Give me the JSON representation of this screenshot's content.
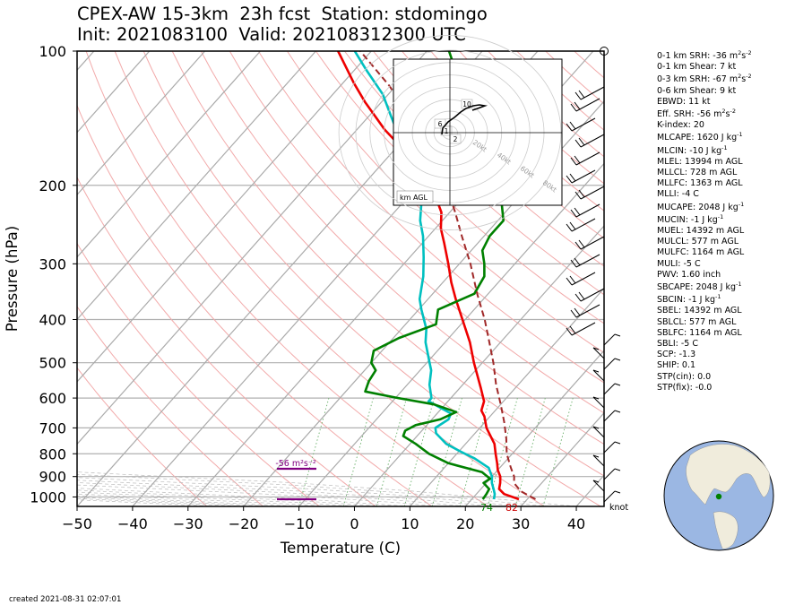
{
  "title_line1": "CPEX-AW 15-3km  23h fcst  Station: stdomingo",
  "title_line2": "Init: 2021083100  Valid: 202108312300 UTC",
  "created": "created 2021-08-31 02:07:01",
  "indices": [
    {
      "text": "0-1 km SRH: -36 m",
      "sup": "2",
      "tail": "s",
      "sup2": "-2"
    },
    {
      "text": "0-1 km Shear: 7 kt"
    },
    {
      "text": "0-3 km SRH: -67 m",
      "sup": "2",
      "tail": "s",
      "sup2": "-2",
      "gap": true
    },
    {
      "text": "0-6 km Shear: 9 kt"
    },
    {
      "text": "EBWD: 11 kt"
    },
    {
      "text": "Eff. SRH: -56 m",
      "sup": "2",
      "tail": "s",
      "sup2": "-2",
      "gap": true
    },
    {
      "text": "K-index: 20"
    },
    {
      "text": "MLCAPE: 1620 J kg",
      "sup": "-1",
      "gap": true
    },
    {
      "text": "MLCIN: -10 J kg",
      "sup": "-1",
      "gap": true
    },
    {
      "text": "MLEL: 13994 m AGL"
    },
    {
      "text": "MLLCL: 728 m AGL"
    },
    {
      "text": "MLLFC: 1363 m AGL"
    },
    {
      "text": "MLLI: -4 C"
    },
    {
      "text": "MUCAPE: 2048 J kg",
      "sup": "-1",
      "gap": true
    },
    {
      "text": "MUCIN: -1 J kg",
      "sup": "-1",
      "gap": true
    },
    {
      "text": "MUEL: 14392 m AGL"
    },
    {
      "text": "MULCL: 577 m AGL"
    },
    {
      "text": "MULFC: 1164 m AGL"
    },
    {
      "text": "MULI: -5 C"
    },
    {
      "text": "PWV: 1.60 inch"
    },
    {
      "text": "SBCAPE: 2048 J kg",
      "sup": "-1",
      "gap": true
    },
    {
      "text": "SBCIN: -1 J kg",
      "sup": "-1",
      "gap": true
    },
    {
      "text": "SBEL: 14392 m AGL"
    },
    {
      "text": "SBLCL: 577 m AGL"
    },
    {
      "text": "SBLFC: 1164 m AGL"
    },
    {
      "text": "SBLI: -5 C"
    },
    {
      "text": "SCP: -1.3"
    },
    {
      "text": "SHIP: 0.1"
    },
    {
      "text": "STP(cin): 0.0"
    },
    {
      "text": "STP(fix): -0.0"
    }
  ],
  "chart_data": {
    "type": "line",
    "subtype": "skew-T log-p",
    "xlabel": "Temperature (C)",
    "ylabel": "Pressure (hPa)",
    "x_ticks": [
      -50,
      -40,
      -30,
      -20,
      -10,
      0,
      10,
      20,
      30,
      40
    ],
    "y_ticks": [
      100,
      200,
      300,
      400,
      500,
      600,
      700,
      800,
      900,
      1000
    ],
    "xlim": [
      -50,
      45
    ],
    "ylim": [
      1050,
      100
    ],
    "series": [
      {
        "color": "#ee0000",
        "points": [
          [
            1012,
            28.5
          ],
          [
            985,
            25
          ],
          [
            960,
            23.3
          ],
          [
            930,
            22.5
          ],
          [
            900,
            21.5
          ],
          [
            870,
            20
          ],
          [
            840,
            18.8
          ],
          [
            800,
            17
          ],
          [
            760,
            15.2
          ],
          [
            700,
            11.2
          ],
          [
            660,
            9
          ],
          [
            640,
            7.5
          ],
          [
            610,
            6.5
          ],
          [
            570,
            3.8
          ],
          [
            500,
            -1.5
          ],
          [
            450,
            -5.5
          ],
          [
            400,
            -10.5
          ],
          [
            360,
            -15
          ],
          [
            330,
            -18.5
          ],
          [
            300,
            -22
          ],
          [
            270,
            -26
          ],
          [
            250,
            -29
          ],
          [
            230,
            -31.5
          ],
          [
            210,
            -35.5
          ],
          [
            190,
            -41
          ],
          [
            170,
            -47
          ],
          [
            150,
            -55
          ],
          [
            130,
            -63
          ],
          [
            118,
            -68
          ],
          [
            100,
            -76
          ]
        ]
      },
      {
        "color": "#00c0c0",
        "points": [
          [
            1012,
            24
          ],
          [
            985,
            23.3
          ],
          [
            960,
            22.3
          ],
          [
            930,
            21
          ],
          [
            900,
            20
          ],
          [
            860,
            18
          ],
          [
            820,
            14
          ],
          [
            790,
            10.2
          ],
          [
            760,
            6.5
          ],
          [
            720,
            3
          ],
          [
            700,
            2
          ],
          [
            670,
            3
          ],
          [
            650,
            2.5
          ],
          [
            610,
            -3.5
          ],
          [
            600,
            -3.5
          ],
          [
            560,
            -6
          ],
          [
            520,
            -8
          ],
          [
            500,
            -9.5
          ],
          [
            450,
            -13.5
          ],
          [
            420,
            -15.5
          ],
          [
            380,
            -19.5
          ],
          [
            360,
            -21.5
          ],
          [
            320,
            -24.5
          ],
          [
            290,
            -27.5
          ],
          [
            260,
            -31
          ],
          [
            240,
            -34
          ],
          [
            220,
            -36.5
          ],
          [
            200,
            -39.5
          ],
          [
            180,
            -44
          ],
          [
            160,
            -50
          ],
          [
            140,
            -56
          ],
          [
            125,
            -61
          ],
          [
            110,
            -68
          ],
          [
            100,
            -73
          ]
        ]
      },
      {
        "color": "#008000",
        "points": [
          [
            1012,
            22
          ],
          [
            985,
            21.8
          ],
          [
            960,
            21.5
          ],
          [
            930,
            19.5
          ],
          [
            910,
            20
          ],
          [
            880,
            17.5
          ],
          [
            840,
            10
          ],
          [
            800,
            5
          ],
          [
            760,
            1
          ],
          [
            730,
            -2.5
          ],
          [
            710,
            -3
          ],
          [
            690,
            -2
          ],
          [
            670,
            1.5
          ],
          [
            645,
            3.2
          ],
          [
            620,
            -2
          ],
          [
            600,
            -9.5
          ],
          [
            580,
            -16.5
          ],
          [
            550,
            -17.5
          ],
          [
            520,
            -18
          ],
          [
            500,
            -20
          ],
          [
            470,
            -21.5
          ],
          [
            440,
            -19
          ],
          [
            410,
            -14.5
          ],
          [
            380,
            -16.5
          ],
          [
            350,
            -12.5
          ],
          [
            320,
            -13.5
          ],
          [
            300,
            -15.5
          ],
          [
            280,
            -18
          ],
          [
            260,
            -19
          ],
          [
            240,
            -19
          ],
          [
            220,
            -22
          ],
          [
            200,
            -26
          ],
          [
            170,
            -36.5
          ],
          [
            150,
            -44
          ],
          [
            140,
            -47
          ],
          [
            125,
            -47
          ],
          [
            115,
            -50
          ],
          [
            100,
            -56
          ]
        ]
      },
      {
        "color": "#a02828",
        "dashed": true,
        "points": [
          [
            1012,
            31.5
          ],
          [
            970,
            27.5
          ],
          [
            930,
            25
          ],
          [
            900,
            24
          ],
          [
            860,
            22
          ],
          [
            800,
            19
          ],
          [
            740,
            16.5
          ],
          [
            680,
            13.5
          ],
          [
            620,
            10
          ],
          [
            560,
            6
          ],
          [
            500,
            2
          ],
          [
            450,
            -2
          ],
          [
            400,
            -6.5
          ],
          [
            350,
            -12
          ],
          [
            300,
            -18
          ],
          [
            260,
            -24
          ],
          [
            230,
            -29
          ],
          [
            200,
            -35
          ],
          [
            170,
            -43
          ],
          [
            140,
            -53
          ],
          [
            120,
            -61
          ],
          [
            100,
            -72
          ]
        ]
      }
    ],
    "surface_labels": [
      {
        "text": "74",
        "color": "#008000"
      },
      {
        "text": "82",
        "color": "#cc0000"
      }
    ],
    "srh_label": "-56 m²s⁻²",
    "wind_unit": "knot",
    "hodograph": {
      "ring_labels": [
        "20kt",
        "40kt",
        "60kt",
        "80kt"
      ],
      "height_labels": [
        "10",
        "6",
        "1",
        "2"
      ],
      "legend": "km AGL"
    }
  }
}
